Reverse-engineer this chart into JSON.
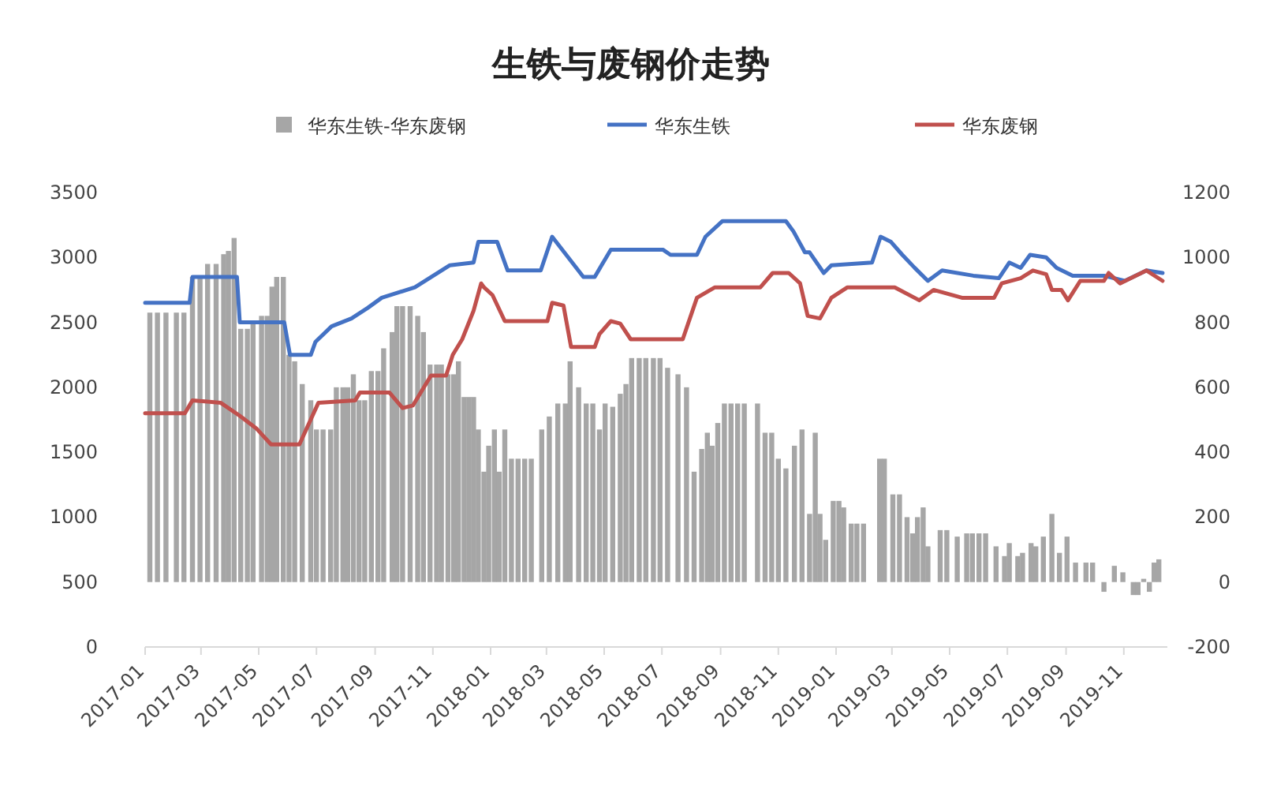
{
  "chart_data": {
    "type": "line",
    "title": "生铁与废钢价走势",
    "legend": "top",
    "xlim": [
      "2017-01-01",
      "2019-12-17"
    ],
    "xticks": [
      "2017-01",
      "2017-03",
      "2017-05",
      "2017-07",
      "2017-09",
      "2017-11",
      "2018-01",
      "2018-03",
      "2018-05",
      "2018-07",
      "2018-09",
      "2018-11",
      "2019-01",
      "2019-03",
      "2019-05",
      "2019-07",
      "2019-09",
      "2019-11"
    ],
    "ylim": [
      0,
      3500
    ],
    "yticks": [
      0,
      500,
      1000,
      1500,
      2000,
      2500,
      3000,
      3500
    ],
    "y2lim": [
      -200,
      1200
    ],
    "y2ticks": [
      -200,
      0,
      200,
      400,
      600,
      800,
      1000,
      1200
    ],
    "series": [
      {
        "name": "华东生铁-华东废钢",
        "type": "bar",
        "axis": "y2",
        "color": "#a6a6a6",
        "x": [
          "2017-01-06",
          "2017-01-14",
          "2017-01-23",
          "2017-02-03",
          "2017-02-11",
          "2017-02-20",
          "2017-02-28",
          "2017-03-08",
          "2017-03-17",
          "2017-03-25",
          "2017-03-30",
          "2017-04-05",
          "2017-04-12",
          "2017-04-19",
          "2017-04-25",
          "2017-05-04",
          "2017-05-10",
          "2017-05-15",
          "2017-05-20",
          "2017-05-27",
          "2017-06-02",
          "2017-06-08",
          "2017-06-16",
          "2017-06-25",
          "2017-07-01",
          "2017-07-08",
          "2017-07-16",
          "2017-07-22",
          "2017-07-29",
          "2017-08-03",
          "2017-08-09",
          "2017-08-15",
          "2017-08-21",
          "2017-08-28",
          "2017-09-04",
          "2017-09-10",
          "2017-09-19",
          "2017-09-24",
          "2017-09-30",
          "2017-10-08",
          "2017-10-16",
          "2017-10-22",
          "2017-10-29",
          "2017-11-05",
          "2017-11-10",
          "2017-11-17",
          "2017-11-23",
          "2017-11-28",
          "2017-12-04",
          "2017-12-09",
          "2017-12-14",
          "2017-12-19",
          "2017-12-25",
          "2017-12-30",
          "2018-01-05",
          "2018-01-10",
          "2018-01-16",
          "2018-01-23",
          "2018-01-30",
          "2018-02-06",
          "2018-02-13",
          "2018-02-24",
          "2018-03-04",
          "2018-03-13",
          "2018-03-21",
          "2018-03-26",
          "2018-04-04",
          "2018-04-12",
          "2018-04-19",
          "2018-04-26",
          "2018-05-02",
          "2018-05-10",
          "2018-05-18",
          "2018-05-24",
          "2018-05-30",
          "2018-06-07",
          "2018-06-14",
          "2018-06-22",
          "2018-06-29",
          "2018-07-07",
          "2018-07-18",
          "2018-07-27",
          "2018-08-04",
          "2018-08-12",
          "2018-08-18",
          "2018-08-23",
          "2018-08-29",
          "2018-09-05",
          "2018-09-12",
          "2018-09-19",
          "2018-09-26",
          "2018-10-10",
          "2018-10-18",
          "2018-10-25",
          "2018-11-01",
          "2018-11-09",
          "2018-11-18",
          "2018-11-26",
          "2018-12-04",
          "2018-12-10",
          "2018-12-15",
          "2018-12-21",
          "2018-12-29",
          "2019-01-04",
          "2019-01-09",
          "2019-01-17",
          "2019-01-23",
          "2019-01-30",
          "2019-02-16",
          "2019-02-21",
          "2019-03-02",
          "2019-03-09",
          "2019-03-17",
          "2019-03-23",
          "2019-03-28",
          "2019-04-03",
          "2019-04-08",
          "2019-04-21",
          "2019-04-28",
          "2019-05-09",
          "2019-05-19",
          "2019-05-25",
          "2019-06-01",
          "2019-06-08",
          "2019-06-19",
          "2019-06-28",
          "2019-07-03",
          "2019-07-12",
          "2019-07-17",
          "2019-07-26",
          "2019-07-31",
          "2019-08-08",
          "2019-08-17",
          "2019-08-25",
          "2019-09-02",
          "2019-09-11",
          "2019-09-22",
          "2019-09-29",
          "2019-10-11",
          "2019-10-22",
          "2019-10-31",
          "2019-11-11",
          "2019-11-16",
          "2019-11-22",
          "2019-11-28",
          "2019-12-03",
          "2019-12-08"
        ],
        "values": [
          830,
          830,
          830,
          830,
          830,
          940,
          940,
          980,
          980,
          1010,
          1020,
          1060,
          780,
          780,
          800,
          820,
          820,
          910,
          940,
          940,
          700,
          680,
          610,
          560,
          470,
          470,
          470,
          600,
          600,
          600,
          640,
          560,
          560,
          650,
          650,
          720,
          770,
          850,
          850,
          850,
          820,
          770,
          670,
          670,
          670,
          640,
          640,
          680,
          570,
          570,
          570,
          470,
          340,
          420,
          470,
          340,
          470,
          380,
          380,
          380,
          380,
          470,
          510,
          550,
          550,
          680,
          600,
          550,
          550,
          470,
          550,
          540,
          580,
          610,
          690,
          690,
          690,
          690,
          690,
          660,
          640,
          600,
          340,
          410,
          460,
          420,
          490,
          550,
          550,
          550,
          550,
          550,
          460,
          460,
          380,
          350,
          420,
          470,
          210,
          460,
          210,
          130,
          250,
          250,
          230,
          180,
          180,
          180,
          380,
          380,
          270,
          270,
          200,
          150,
          200,
          230,
          110,
          160,
          160,
          140,
          150,
          150,
          150,
          150,
          110,
          80,
          120,
          80,
          90,
          120,
          110,
          140,
          210,
          90,
          140,
          60,
          60,
          60,
          -30,
          50,
          30,
          -40,
          -40,
          10,
          -30,
          60,
          70
        ]
      },
      {
        "name": "华东生铁",
        "color": "#4472c4",
        "x": [
          "2017-01-01",
          "2017-02-17",
          "2017-02-20",
          "2017-04-08",
          "2017-04-11",
          "2017-05-28",
          "2017-06-03",
          "2017-06-25",
          "2017-06-30",
          "2017-07-17",
          "2017-08-07",
          "2017-08-24",
          "2017-09-08",
          "2017-10-13",
          "2017-11-19",
          "2017-12-14",
          "2017-12-19",
          "2018-01-08",
          "2018-01-19",
          "2018-02-23",
          "2018-03-07",
          "2018-03-24",
          "2018-04-09",
          "2018-04-21",
          "2018-05-08",
          "2018-07-02",
          "2018-07-10",
          "2018-08-07",
          "2018-08-16",
          "2018-09-03",
          "2018-11-09",
          "2018-11-17",
          "2018-11-29",
          "2018-12-04",
          "2018-12-19",
          "2018-12-27",
          "2019-02-08",
          "2019-02-17",
          "2019-02-28",
          "2019-03-12",
          "2019-03-25",
          "2019-04-08",
          "2019-04-23",
          "2019-05-26",
          "2019-06-22",
          "2019-07-03",
          "2019-07-15",
          "2019-07-25",
          "2019-08-11",
          "2019-08-22",
          "2019-09-08",
          "2019-10-11",
          "2019-11-02",
          "2019-11-25",
          "2019-12-12"
        ],
        "values": [
          2650,
          2650,
          2850,
          2850,
          2500,
          2500,
          2250,
          2250,
          2350,
          2470,
          2530,
          2610,
          2690,
          2770,
          2940,
          2960,
          3120,
          3120,
          2900,
          2900,
          3160,
          3000,
          2850,
          2850,
          3060,
          3060,
          3020,
          3020,
          3160,
          3280,
          3280,
          3200,
          3040,
          3040,
          2880,
          2940,
          2960,
          3160,
          3120,
          3020,
          2920,
          2820,
          2900,
          2860,
          2840,
          2960,
          2920,
          3020,
          3000,
          2920,
          2860,
          2860,
          2820,
          2900,
          2880
        ]
      },
      {
        "name": "华东废钢",
        "color": "#c0504d",
        "x": [
          "2017-01-01",
          "2017-02-12",
          "2017-02-20",
          "2017-03-22",
          "2017-04-11",
          "2017-04-29",
          "2017-05-14",
          "2017-06-13",
          "2017-07-03",
          "2017-08-11",
          "2017-08-16",
          "2017-09-16",
          "2017-09-30",
          "2017-10-11",
          "2017-10-30",
          "2017-11-15",
          "2017-11-22",
          "2017-12-02",
          "2017-12-14",
          "2017-12-22",
          "2017-12-25",
          "2018-01-03",
          "2018-01-16",
          "2018-03-02",
          "2018-03-07",
          "2018-03-19",
          "2018-03-27",
          "2018-04-21",
          "2018-04-26",
          "2018-05-08",
          "2018-05-18",
          "2018-05-29",
          "2018-07-23",
          "2018-08-07",
          "2018-08-26",
          "2018-10-13",
          "2018-10-26",
          "2018-11-12",
          "2018-11-24",
          "2018-12-02",
          "2018-12-15",
          "2018-12-27",
          "2019-01-13",
          "2019-03-04",
          "2019-03-30",
          "2019-04-14",
          "2019-05-14",
          "2019-06-17",
          "2019-06-25",
          "2019-07-15",
          "2019-07-28",
          "2019-08-11",
          "2019-08-17",
          "2019-08-27",
          "2019-09-03",
          "2019-09-16",
          "2019-10-11",
          "2019-10-16",
          "2019-10-28",
          "2019-11-25",
          "2019-12-12"
        ],
        "values": [
          1800,
          1800,
          1900,
          1880,
          1780,
          1680,
          1560,
          1560,
          1880,
          1900,
          1960,
          1960,
          1840,
          1860,
          2090,
          2090,
          2250,
          2370,
          2590,
          2800,
          2770,
          2710,
          2510,
          2510,
          2650,
          2630,
          2310,
          2310,
          2410,
          2510,
          2490,
          2370,
          2370,
          2690,
          2770,
          2770,
          2880,
          2880,
          2800,
          2550,
          2530,
          2690,
          2770,
          2770,
          2670,
          2750,
          2690,
          2690,
          2800,
          2840,
          2900,
          2870,
          2750,
          2750,
          2670,
          2820,
          2820,
          2880,
          2800,
          2900,
          2820
        ]
      }
    ]
  }
}
